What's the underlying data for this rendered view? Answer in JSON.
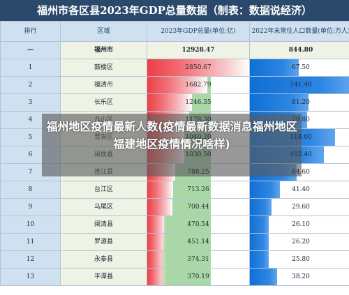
{
  "title": "福州市各区县2023年GDP总量数据（制表：数据说经济）",
  "headers": {
    "rank": "排行",
    "area": "区域",
    "gdp": "2023年GDP总量(单位:亿)",
    "pop": "2022年末常住人口数量(单位:万人)"
  },
  "rows": [
    {
      "rank": "—",
      "area": "福州市",
      "gdp": "12928.47",
      "pop": "844.80"
    },
    {
      "rank": "1",
      "area": "鼓楼区",
      "gdp": "2850.67",
      "pop": "67.50"
    },
    {
      "rank": "2",
      "area": "福清市",
      "gdp": "1682.79",
      "pop": "141.40"
    },
    {
      "rank": "3",
      "area": "长乐区",
      "gdp": "1246.35",
      "pop": "81.20"
    },
    {
      "rank": "4",
      "area": "仓山区",
      "gdp": "1178.30",
      "pop": "79.80"
    },
    {
      "rank": "5",
      "area": "晋安区",
      "gdp": "1040.20",
      "pop": "118.00"
    },
    {
      "rank": "6",
      "area": "闽侯县",
      "gdp": "1030.50",
      "pop": "102.40"
    },
    {
      "rank": "7",
      "area": "连江县",
      "gdp": "788.25",
      "pop": "64.60"
    },
    {
      "rank": "8",
      "area": "台江区",
      "gdp": "713.26",
      "pop": "41.40"
    },
    {
      "rank": "9",
      "area": "马尾区",
      "gdp": "700.44",
      "pop": "29.60"
    },
    {
      "rank": "10",
      "area": "闽清县",
      "gdp": "470.54",
      "pop": "26.10"
    },
    {
      "rank": "11",
      "area": "罗源县",
      "gdp": "451.14",
      "pop": "26.20"
    },
    {
      "rank": "12",
      "area": "永泰县",
      "gdp": "374.31",
      "pop": "25.80"
    },
    {
      "rank": "13",
      "area": "平潭县",
      "gdp": "370.19",
      "pop": "38.20"
    }
  ],
  "overlay": {
    "text": "福州地区疫情最新人数(疫情最新数据消息福州地区福建地区疫情情况啥样)"
  }
}
